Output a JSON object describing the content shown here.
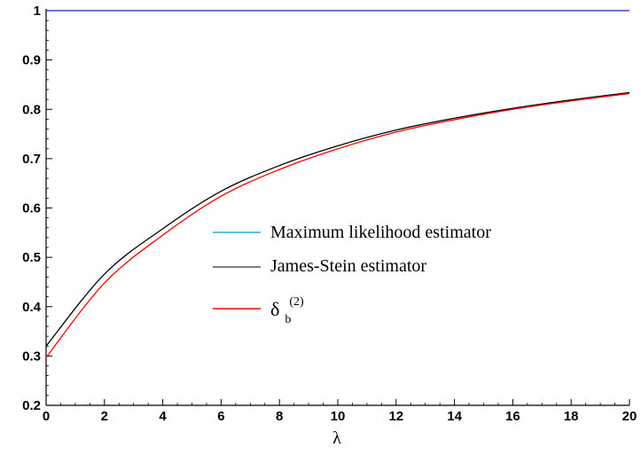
{
  "chart_data": {
    "type": "line",
    "title": "",
    "xlabel": "λ",
    "ylabel": "",
    "xlim": [
      0,
      20
    ],
    "ylim": [
      0.2,
      1
    ],
    "grid": false,
    "legend_placement": "center-right",
    "x_ticks": [
      0,
      2,
      4,
      6,
      8,
      10,
      12,
      14,
      16,
      18,
      20
    ],
    "x_tick_labels": [
      "0",
      "2",
      "4",
      "6",
      "8",
      "10",
      "12",
      "14",
      "16",
      "18",
      "20"
    ],
    "y_ticks": [
      0.2,
      0.3,
      0.4,
      0.5,
      0.6,
      0.7,
      0.8,
      0.9,
      1
    ],
    "y_tick_labels": [
      "0.2",
      "0.3",
      "0.4",
      "0.5",
      "0.6",
      "0.7",
      "0.8",
      "0.9",
      "1"
    ],
    "x": [
      0,
      2,
      4,
      6,
      8,
      10,
      12,
      14,
      16,
      18,
      20
    ],
    "series": [
      {
        "name": "Maximum likelihood estimator",
        "color": "#1f1fd0",
        "legend_color": "#2aa8e0",
        "values": [
          1,
          1,
          1,
          1,
          1,
          1,
          1,
          1,
          1,
          1,
          1
        ]
      },
      {
        "name": "James-Stein estimator",
        "color": "#000000",
        "legend_color": "#555555",
        "values": [
          0.32,
          0.466,
          0.558,
          0.634,
          0.686,
          0.726,
          0.758,
          0.782,
          0.802,
          0.819,
          0.834
        ]
      },
      {
        "name_main": "δ",
        "name_sub": "b",
        "name_sup": "(2)",
        "color": "#ff0000",
        "legend_color": "#ff0000",
        "values": [
          0.297,
          0.448,
          0.545,
          0.624,
          0.678,
          0.72,
          0.754,
          0.779,
          0.8,
          0.817,
          0.832
        ]
      }
    ]
  }
}
